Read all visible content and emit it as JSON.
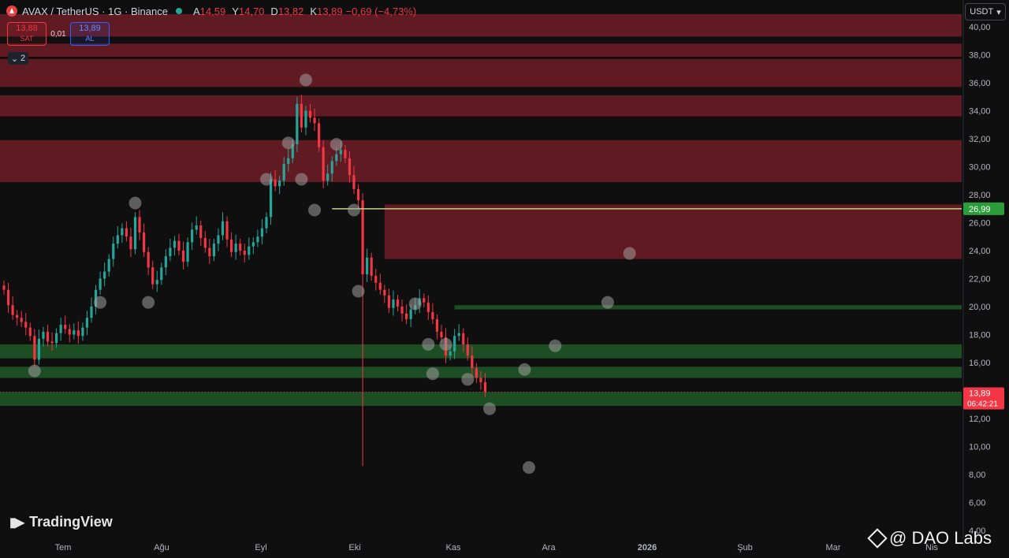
{
  "header": {
    "symbol": "AVAX / TetherUS · 1G · Binance",
    "open_key": "A",
    "open_val": "14,59",
    "high_key": "Y",
    "high_val": "14,70",
    "low_key": "D",
    "low_val": "13,82",
    "close_key": "K",
    "close_val": "13,89",
    "change": "−0,69 (−4,73%)"
  },
  "trade": {
    "sell_price": "13,88",
    "sell_label": "SAT",
    "spread": "0,01",
    "buy_price": "13,89",
    "buy_label": "AL"
  },
  "indicator_count": "2",
  "currency": "USDT",
  "branding": {
    "tradingview": "TradingView",
    "watermark": "@ DAO Labs"
  },
  "colors": {
    "up": "#26a69a",
    "down": "#f23645",
    "resistance_zone": "#6e1c26",
    "support_zone": "#1f5526",
    "price_line": "#c5d18a"
  },
  "chart_data": {
    "type": "candlestick",
    "title": "",
    "ylim": [
      4,
      41
    ],
    "y_ticks": [
      "40,00",
      "38,00",
      "36,00",
      "34,00",
      "32,00",
      "30,00",
      "28,00",
      "26,00",
      "24,00",
      "22,00",
      "20,00",
      "18,00",
      "16,00",
      "14,00",
      "12,00",
      "10,00",
      "8,00",
      "6,00",
      "4,00"
    ],
    "x_ticks": [
      "Tem",
      "Ağu",
      "Eyl",
      "Eki",
      "Kas",
      "Ara",
      "2026",
      "Şub",
      "Mar",
      "Nis"
    ],
    "last_price_label": "13,89",
    "countdown": "06:42:21",
    "marker_label": "26,99",
    "marker_price": 26.99,
    "resistance_zones": [
      {
        "low": 39.3,
        "high": 40.9
      },
      {
        "low": 37.8,
        "high": 38.8
      },
      {
        "low": 35.7,
        "high": 37.7
      },
      {
        "low": 33.6,
        "high": 35.1
      },
      {
        "low": 28.9,
        "high": 31.9
      },
      {
        "low": 23.4,
        "high": 27.3
      }
    ],
    "support_zones": [
      {
        "low": 19.8,
        "high": 20.1
      },
      {
        "low": 16.3,
        "high": 17.3
      },
      {
        "low": 14.9,
        "high": 15.7
      },
      {
        "low": 12.9,
        "high": 13.9
      }
    ],
    "close_series": [
      21.2,
      20.1,
      19.4,
      19.2,
      18.9,
      18.5,
      17.9,
      16.2,
      17.7,
      18.2,
      17.5,
      17.4,
      18.1,
      18.7,
      18.4,
      18.0,
      18.3,
      17.9,
      18.5,
      19.2,
      20.0,
      21.2,
      22.0,
      22.5,
      23.4,
      24.5,
      25.1,
      25.6,
      25.0,
      24.1,
      26.4,
      25.3,
      23.9,
      22.8,
      21.6,
      21.9,
      22.8,
      23.6,
      24.2,
      24.7,
      24.0,
      23.2,
      24.6,
      25.5,
      25.8,
      24.9,
      24.2,
      23.6,
      24.5,
      25.1,
      26.1,
      24.8,
      23.9,
      24.5,
      24.0,
      23.7,
      24.3,
      24.6,
      25.0,
      25.6,
      26.4,
      29.1,
      28.6,
      29.0,
      30.2,
      30.6,
      31.6,
      34.5,
      32.8,
      34.0,
      33.5,
      33.1,
      31.4,
      29.0,
      29.5,
      30.4,
      30.9,
      31.2,
      30.6,
      29.4,
      28.4,
      27.6,
      22.3,
      23.5,
      22.2,
      21.7,
      21.2,
      20.8,
      19.9,
      20.5,
      20.0,
      19.5,
      19.1,
      19.8,
      20.1,
      20.6,
      20.3,
      19.6,
      19.1,
      18.2,
      17.8,
      16.5,
      16.8,
      17.9,
      18.1,
      17.3,
      16.5,
      15.6,
      14.9,
      14.6,
      13.9
    ],
    "circles": [
      {
        "day": 7,
        "price": 15.4
      },
      {
        "day": 22,
        "price": 20.3
      },
      {
        "day": 30,
        "price": 27.4
      },
      {
        "day": 33,
        "price": 20.3
      },
      {
        "day": 60,
        "price": 29.1
      },
      {
        "day": 65,
        "price": 31.7
      },
      {
        "day": 68,
        "price": 29.1
      },
      {
        "day": 69,
        "price": 36.2
      },
      {
        "day": 71,
        "price": 26.9
      },
      {
        "day": 76,
        "price": 31.6
      },
      {
        "day": 80,
        "price": 26.9
      },
      {
        "day": 81,
        "price": 21.1
      },
      {
        "day": 94,
        "price": 20.2
      },
      {
        "day": 97,
        "price": 17.3
      },
      {
        "day": 98,
        "price": 15.2
      },
      {
        "day": 101,
        "price": 17.3
      },
      {
        "day": 106,
        "price": 14.8
      },
      {
        "day": 111,
        "price": 12.7
      },
      {
        "day": 119,
        "price": 15.5
      },
      {
        "day": 120,
        "price": 8.5
      },
      {
        "day": 126,
        "price": 17.2
      },
      {
        "day": 138,
        "price": 20.3
      },
      {
        "day": 143,
        "price": 23.8
      }
    ]
  }
}
